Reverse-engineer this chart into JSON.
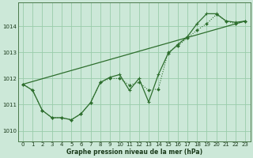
{
  "xlabel": "Graphe pression niveau de la mer (hPa)",
  "xlim": [
    -0.5,
    23.5
  ],
  "ylim": [
    1009.6,
    1014.9
  ],
  "yticks": [
    1010,
    1011,
    1012,
    1013,
    1014
  ],
  "xticks": [
    0,
    1,
    2,
    3,
    4,
    5,
    6,
    7,
    8,
    9,
    10,
    11,
    12,
    13,
    14,
    15,
    16,
    17,
    18,
    19,
    20,
    21,
    22,
    23
  ],
  "background_color": "#cce8d8",
  "grid_color": "#99ccaa",
  "line_color": "#2d6e2d",
  "series_straight": {
    "x": [
      0,
      23
    ],
    "y": [
      1011.78,
      1014.2
    ]
  },
  "series_dotted": {
    "x": [
      0,
      1,
      2,
      3,
      4,
      5,
      6,
      7,
      8,
      9,
      10,
      11,
      12,
      13,
      14,
      15,
      16,
      17,
      18,
      19,
      20,
      21,
      22,
      23
    ],
    "y": [
      1011.78,
      1011.55,
      1010.78,
      1010.5,
      1010.5,
      1010.42,
      1010.65,
      1011.08,
      1011.85,
      1012.0,
      1012.0,
      1011.75,
      1011.85,
      1011.55,
      1011.6,
      1013.0,
      1013.25,
      1013.55,
      1013.85,
      1014.1,
      1014.45,
      1014.2,
      1014.1,
      1014.2
    ]
  },
  "series_wiggly": {
    "x": [
      0,
      1,
      2,
      3,
      4,
      5,
      6,
      7,
      8,
      9,
      10,
      11,
      12,
      13,
      14,
      15,
      16,
      17,
      18,
      19,
      20,
      21,
      22,
      23
    ],
    "y": [
      1011.78,
      1011.55,
      1010.78,
      1010.5,
      1010.5,
      1010.42,
      1010.65,
      1011.08,
      1011.85,
      1012.05,
      1012.15,
      1011.55,
      1012.0,
      1011.1,
      1012.15,
      1012.95,
      1013.3,
      1013.6,
      1014.1,
      1014.48,
      1014.48,
      1014.2,
      1014.15,
      1014.2
    ]
  }
}
